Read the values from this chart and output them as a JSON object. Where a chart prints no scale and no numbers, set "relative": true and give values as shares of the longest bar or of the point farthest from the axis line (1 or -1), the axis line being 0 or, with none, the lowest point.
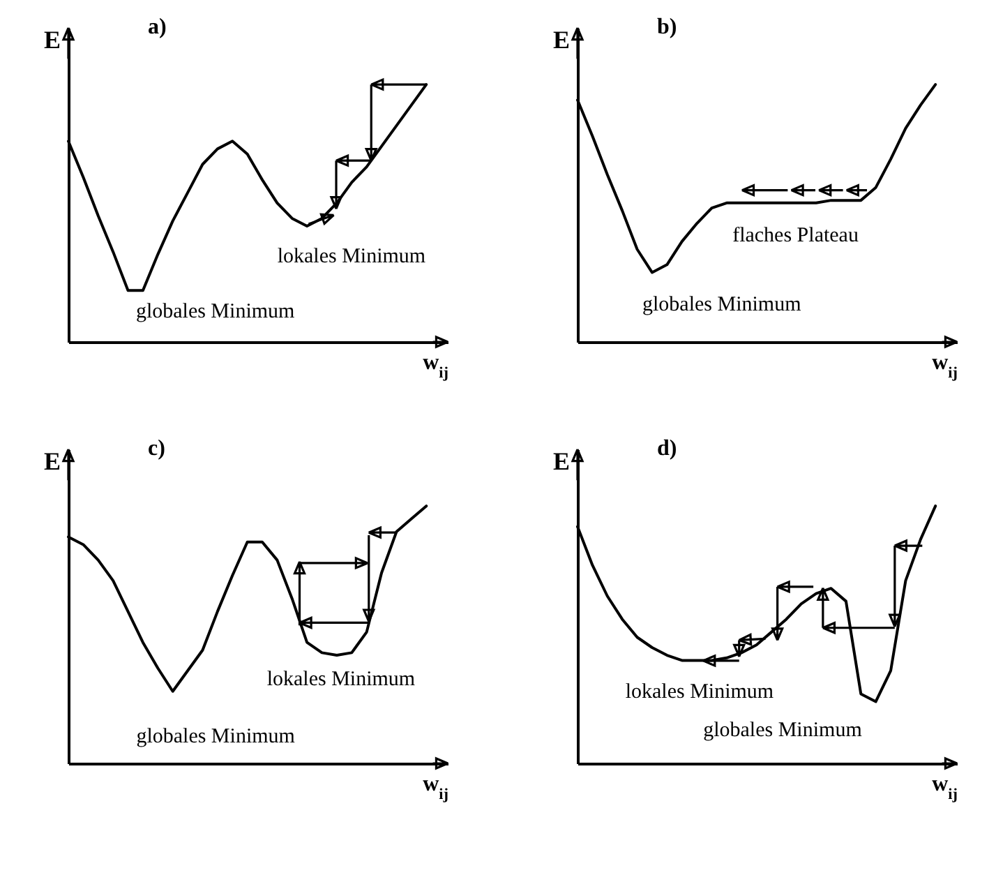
{
  "chart_data": [
    {
      "type": "line",
      "title": "a)",
      "xlabel": "w$_{ij}$",
      "ylabel": "E",
      "relative": true,
      "tick_labels": false,
      "categories": [
        null,
        null,
        null,
        null,
        null,
        null,
        null,
        null,
        null,
        null,
        null,
        null,
        null,
        null,
        null,
        null,
        null,
        null,
        null,
        null,
        null,
        null,
        null,
        null,
        null
      ],
      "series": [
        {
          "color": "#000000",
          "values": [
            0.78,
            0.64,
            0.49,
            0.35,
            0.2,
            0.2,
            0.34,
            0.47,
            0.58,
            0.69,
            0.75,
            0.78,
            0.73,
            0.63,
            0.54,
            0.48,
            0.45,
            0.48,
            0.54,
            0.62,
            0.68,
            0.76,
            0.84,
            0.92,
            1
          ]
        }
      ],
      "annotations": [
        "lokales Minimum",
        "globales Minimum"
      ]
    },
    {
      "type": "line",
      "title": "b)",
      "xlabel": "w$_{ij}$",
      "ylabel": "E",
      "relative": true,
      "tick_labels": false,
      "categories": [
        null,
        null,
        null,
        null,
        null,
        null,
        null,
        null,
        null,
        null,
        null,
        null,
        null,
        null,
        null,
        null,
        null,
        null,
        null,
        null,
        null,
        null,
        null,
        null,
        null
      ],
      "series": [
        {
          "color": "#000000",
          "values": [
            0.94,
            0.8,
            0.65,
            0.51,
            0.36,
            0.27,
            0.3,
            0.39,
            0.46,
            0.52,
            0.54,
            0.54,
            0.54,
            0.54,
            0.54,
            0.54,
            0.54,
            0.55,
            0.55,
            0.55,
            0.6,
            0.71,
            0.83,
            0.92,
            1
          ]
        }
      ],
      "annotations": [
        "flaches Plateau",
        "globales Minimum"
      ]
    },
    {
      "type": "line",
      "title": "c)",
      "xlabel": "w$_{ij}$",
      "ylabel": "E",
      "relative": true,
      "tick_labels": false,
      "categories": [
        null,
        null,
        null,
        null,
        null,
        null,
        null,
        null,
        null,
        null,
        null,
        null,
        null,
        null,
        null,
        null,
        null,
        null,
        null,
        null,
        null,
        null,
        null,
        null,
        null
      ],
      "series": [
        {
          "color": "#000000",
          "values": [
            0.88,
            0.85,
            0.79,
            0.71,
            0.59,
            0.47,
            0.37,
            0.28,
            0.36,
            0.44,
            0.59,
            0.73,
            0.86,
            0.86,
            0.79,
            0.64,
            0.47,
            0.43,
            0.42,
            0.43,
            0.51,
            0.74,
            0.9,
            0.95,
            1
          ]
        }
      ],
      "annotations": [
        "lokales Minimum",
        "globales Minimum"
      ]
    },
    {
      "type": "line",
      "title": "d)",
      "xlabel": "w$_{ij}$",
      "ylabel": "E",
      "relative": true,
      "tick_labels": false,
      "categories": [
        null,
        null,
        null,
        null,
        null,
        null,
        null,
        null,
        null,
        null,
        null,
        null,
        null,
        null,
        null,
        null,
        null,
        null,
        null,
        null,
        null,
        null,
        null,
        null,
        null
      ],
      "series": [
        {
          "color": "#000000",
          "values": [
            0.92,
            0.77,
            0.65,
            0.56,
            0.49,
            0.45,
            0.42,
            0.4,
            0.4,
            0.4,
            0.41,
            0.43,
            0.46,
            0.51,
            0.56,
            0.62,
            0.66,
            0.68,
            0.63,
            0.27,
            0.24,
            0.36,
            0.71,
            0.87,
            1
          ]
        }
      ],
      "annotations": [
        "lokales Minimum",
        "globales Minimum"
      ]
    }
  ]
}
